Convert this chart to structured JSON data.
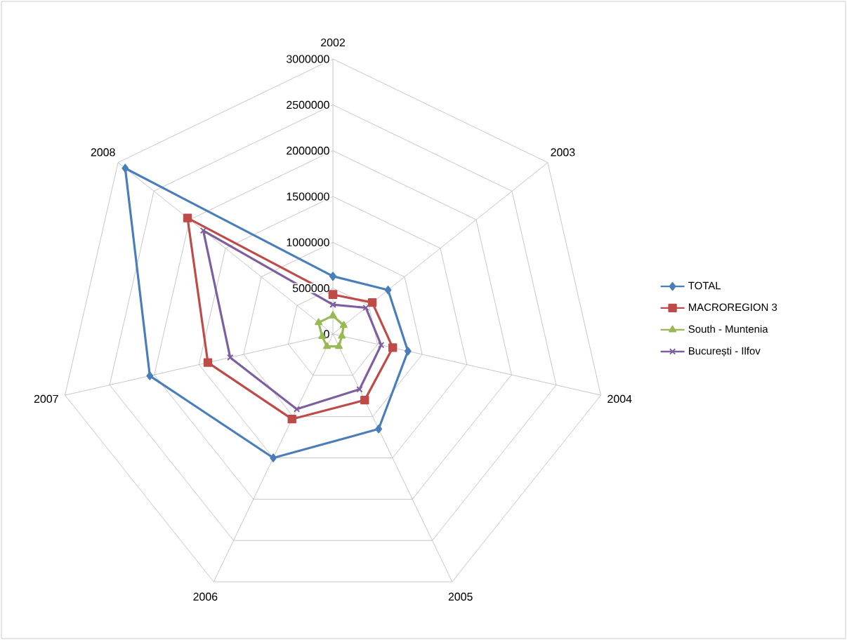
{
  "chart_data": {
    "type": "radar",
    "categories": [
      "2002",
      "2003",
      "2004",
      "2005",
      "2006",
      "2007",
      "2008"
    ],
    "ylim": [
      0,
      3000000
    ],
    "yticks": [
      0,
      500000,
      1000000,
      1500000,
      2000000,
      2500000,
      3000000
    ],
    "grid": true,
    "legend": "right",
    "line_style": "solid",
    "series": [
      {
        "name": "TOTAL",
        "color": "#4a7ebb",
        "marker": "diamond",
        "values": [
          630000,
          770000,
          840000,
          1150000,
          1500000,
          2050000,
          2900000
        ]
      },
      {
        "name": "MACROREGION 3",
        "color": "#be4b48",
        "marker": "square",
        "values": [
          430000,
          550000,
          670000,
          800000,
          1030000,
          1400000,
          2030000
        ]
      },
      {
        "name": "South - Muntenia",
        "color": "#98b954",
        "marker": "triangle",
        "values": [
          200000,
          150000,
          100000,
          150000,
          150000,
          120000,
          200000
        ]
      },
      {
        "name": "București - Ilfov",
        "color": "#7d5fa0",
        "marker": "cross",
        "values": [
          320000,
          460000,
          540000,
          670000,
          910000,
          1150000,
          1810000
        ]
      }
    ]
  }
}
